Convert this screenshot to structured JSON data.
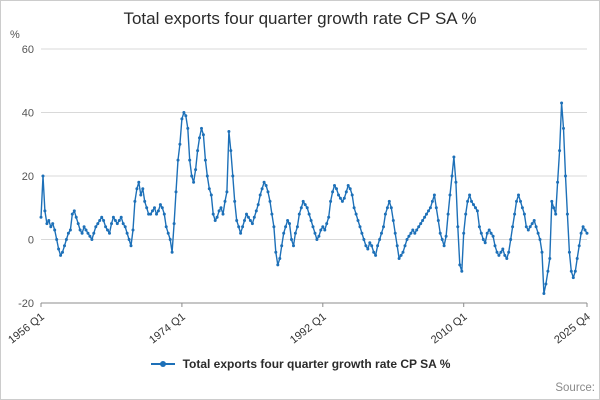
{
  "title": "Total exports four quarter growth rate CP SA %",
  "y_axis_unit": "%",
  "legend": {
    "label": "Total exports four quarter growth rate CP SA %"
  },
  "source_label": "Source:",
  "colors": {
    "line": "#1d70b8",
    "grid": "#d9d9d9",
    "axis": "#8c8c8c",
    "tick_text": "#555555",
    "x_text": "#333333"
  },
  "chart_data": {
    "type": "line",
    "title": "Total exports four quarter growth rate CP SA %",
    "xlabel": "",
    "ylabel": "%",
    "ylim": [
      -20,
      60
    ],
    "yticks": [
      60,
      40,
      20,
      0,
      -20
    ],
    "grid": true,
    "legend_position": "bottom",
    "frequency": "quarterly",
    "x_start": "1956 Q1",
    "x_end": "2025 Q4",
    "xticks": [
      {
        "label": "1956 Q1",
        "index": 0
      },
      {
        "label": "1974 Q1",
        "index": 72
      },
      {
        "label": "1992 Q1",
        "index": 144
      },
      {
        "label": "2010 Q1",
        "index": 216
      },
      {
        "label": "2025 Q4",
        "index": 279
      }
    ],
    "series": [
      {
        "name": "Total exports four quarter growth rate CP SA %",
        "values": [
          7,
          20,
          9,
          5,
          6,
          4,
          5,
          3,
          0,
          -3,
          -5,
          -4,
          -2,
          0,
          2,
          3,
          8,
          9,
          7,
          5,
          3,
          2,
          4,
          3,
          2,
          1,
          0,
          2,
          4,
          5,
          6,
          7,
          6,
          4,
          3,
          2,
          5,
          7,
          6,
          5,
          6,
          7,
          5,
          4,
          2,
          0,
          -2,
          3,
          12,
          16,
          18,
          14,
          16,
          12,
          10,
          8,
          8,
          9,
          10,
          8,
          9,
          11,
          10,
          8,
          4,
          2,
          0,
          -4,
          5,
          15,
          25,
          30,
          38,
          40,
          39,
          35,
          25,
          20,
          18,
          22,
          28,
          32,
          35,
          33,
          25,
          20,
          16,
          14,
          8,
          6,
          7,
          9,
          10,
          8,
          12,
          15,
          34,
          28,
          20,
          12,
          6,
          4,
          2,
          4,
          6,
          8,
          7,
          6,
          5,
          7,
          9,
          11,
          14,
          16,
          18,
          17,
          15,
          12,
          8,
          4,
          -4,
          -8,
          -6,
          -2,
          2,
          4,
          6,
          5,
          0,
          -2,
          2,
          4,
          8,
          10,
          12,
          11,
          10,
          8,
          6,
          4,
          2,
          0,
          1,
          3,
          4,
          3,
          5,
          7,
          12,
          15,
          17,
          16,
          14,
          13,
          12,
          13,
          15,
          17,
          16,
          14,
          10,
          8,
          6,
          4,
          2,
          0,
          -2,
          -3,
          -1,
          -2,
          -4,
          -5,
          -2,
          0,
          2,
          4,
          8,
          10,
          12,
          10,
          6,
          2,
          -2,
          -6,
          -5,
          -4,
          -2,
          0,
          1,
          2,
          3,
          2,
          3,
          4,
          5,
          6,
          7,
          8,
          9,
          10,
          12,
          14,
          10,
          6,
          2,
          0,
          -2,
          1,
          8,
          14,
          20,
          26,
          18,
          4,
          -8,
          -10,
          2,
          8,
          12,
          14,
          12,
          11,
          10,
          9,
          4,
          2,
          0,
          -1,
          2,
          3,
          2,
          1,
          -2,
          -4,
          -5,
          -4,
          -3,
          -5,
          -6,
          -4,
          0,
          4,
          8,
          12,
          14,
          12,
          10,
          8,
          4,
          3,
          4,
          5,
          6,
          4,
          2,
          0,
          -4,
          -17,
          -14,
          -10,
          -6,
          12,
          10,
          8,
          18,
          28,
          43,
          35,
          20,
          8,
          -4,
          -10,
          -12,
          -10,
          -6,
          -2,
          2,
          4,
          3,
          2
        ]
      }
    ]
  }
}
